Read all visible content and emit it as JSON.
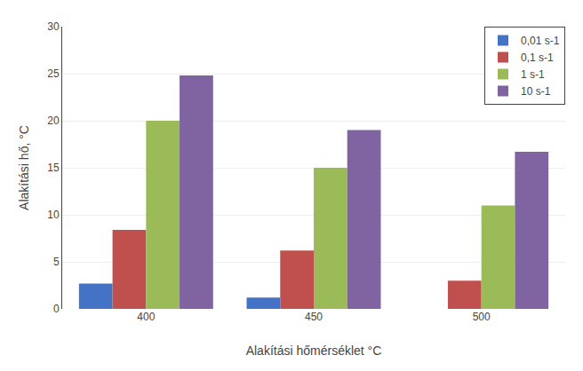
{
  "chart_data": {
    "type": "bar",
    "xlabel": "Alakítási hőmérséklet °C",
    "ylabel": "Alakítási hő, °C",
    "categories": [
      "400",
      "450",
      "500"
    ],
    "series": [
      {
        "name": "0,01 s-1",
        "color": "#4472C4",
        "values": [
          2.7,
          1.2,
          0.0
        ]
      },
      {
        "name": "0,1 s-1",
        "color": "#C0504D",
        "values": [
          8.4,
          6.2,
          3.0
        ]
      },
      {
        "name": "1 s-1",
        "color": "#9BBB59",
        "values": [
          20.0,
          15.0,
          11.0
        ]
      },
      {
        "name": "10 s-1",
        "color": "#8064A2",
        "values": [
          24.8,
          19.0,
          16.7
        ]
      }
    ],
    "ylim": [
      0,
      30
    ],
    "yticks": [
      0,
      5,
      10,
      15,
      20,
      25,
      30
    ],
    "grid": true,
    "legend": "upper right"
  }
}
